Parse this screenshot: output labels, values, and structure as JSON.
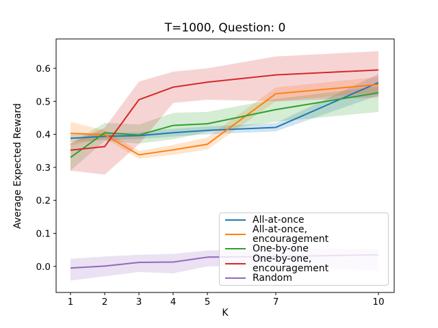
{
  "figure": {
    "title": "T=1000, Question: 0",
    "xlabel": "K",
    "ylabel": "Average Expected Reward"
  },
  "chart_data": {
    "type": "line",
    "title": "T=1000, Question: 0",
    "xlabel": "K",
    "ylabel": "Average Expected Reward",
    "grid": false,
    "legend_position": "lower-right-inside",
    "band_alpha": 0.2,
    "axis_color": "#000000",
    "x": [
      1,
      2,
      3,
      4,
      5,
      7,
      10
    ],
    "xlim": [
      0.58,
      10.46
    ],
    "ylim": [
      -0.079,
      0.689
    ],
    "xticks": {
      "values": [
        1,
        2,
        3,
        4,
        5,
        7,
        10
      ],
      "labels": [
        "1",
        "2",
        "3",
        "4",
        "5",
        "7",
        "10"
      ]
    },
    "yticks": {
      "values": [
        0.0,
        0.1,
        0.2,
        0.3,
        0.4,
        0.5,
        0.6
      ],
      "labels": [
        "0.0",
        "0.1",
        "0.2",
        "0.3",
        "0.4",
        "0.5",
        "0.6"
      ]
    },
    "series": [
      {
        "name": "All-at-once",
        "color": "#1f77b4",
        "values": [
          0.388,
          0.394,
          0.396,
          0.405,
          0.412,
          0.421,
          0.557
        ],
        "band_lower": [
          0.377,
          0.383,
          0.386,
          0.393,
          0.4,
          0.409,
          0.518
        ],
        "band_upper": [
          0.399,
          0.404,
          0.406,
          0.417,
          0.424,
          0.434,
          0.583
        ]
      },
      {
        "name": "All-at-once, encouragement",
        "color": "#ff7f0e",
        "values": [
          0.403,
          0.399,
          0.338,
          0.353,
          0.37,
          0.523,
          0.551
        ],
        "band_lower": [
          0.366,
          0.388,
          0.326,
          0.338,
          0.354,
          0.5,
          0.528
        ],
        "band_upper": [
          0.438,
          0.412,
          0.35,
          0.368,
          0.391,
          0.542,
          0.574
        ]
      },
      {
        "name": "One-by-one",
        "color": "#2ca02c",
        "values": [
          0.33,
          0.405,
          0.398,
          0.427,
          0.432,
          0.475,
          0.526
        ],
        "band_lower": [
          0.29,
          0.38,
          0.372,
          0.385,
          0.407,
          0.438,
          0.468
        ],
        "band_upper": [
          0.372,
          0.435,
          0.43,
          0.465,
          0.468,
          0.507,
          0.545
        ]
      },
      {
        "name": "One-by-one, encouragement",
        "color": "#d62728",
        "values": [
          0.352,
          0.363,
          0.505,
          0.543,
          0.558,
          0.58,
          0.595
        ],
        "band_lower": [
          0.29,
          0.278,
          0.37,
          0.495,
          0.505,
          0.5,
          0.512
        ],
        "band_upper": [
          0.373,
          0.42,
          0.56,
          0.59,
          0.6,
          0.636,
          0.652
        ]
      },
      {
        "name": "Random",
        "color": "#9467bd",
        "values": [
          -0.005,
          0.001,
          0.012,
          0.013,
          0.028,
          0.03,
          0.035
        ],
        "band_lower": [
          -0.043,
          -0.03,
          -0.017,
          -0.021,
          0.0,
          0.002,
          -0.014
        ],
        "band_upper": [
          0.023,
          0.03,
          0.035,
          0.038,
          0.048,
          0.055,
          0.052
        ]
      }
    ]
  }
}
